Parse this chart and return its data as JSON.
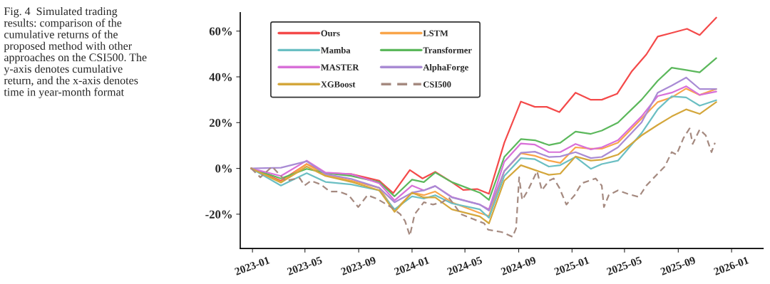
{
  "chart_data": {
    "type": "line",
    "title": "Fig. 4  Simulated trading\nresults: comparison of the\ncumulative returns of the\nproposed method with other\napproaches on the CSI500. The\ny-axis denotes cumulative\nreturn, and the x-axis denotes\ntime in year-month format",
    "x": [
      "2022-12-29",
      "2023-03-07",
      "2023-05-05",
      "2023-06-17",
      "2023-08-15",
      "2023-10-18",
      "2023-11-22",
      "2024-01-01",
      "2024-01-28",
      "2024-02-23",
      "2024-04-01",
      "2024-06-04",
      "2024-06-25",
      "2024-07-30",
      "2024-09-06",
      "2024-10-08",
      "2024-11-09",
      "2024-12-05",
      "2025-01-09",
      "2025-02-13",
      "2025-03-10",
      "2025-04-16",
      "2025-06-09",
      "2025-07-16",
      "2025-08-17",
      "2025-09-19",
      "2025-10-20",
      "2025-11-27"
    ],
    "series": [
      {
        "name": "Ours",
        "color": "#f44a4a",
        "x": [
          "2022-12-29",
          "2023-03-07",
          "2023-05-05",
          "2023-06-17",
          "2023-08-15",
          "2023-10-18",
          "2023-11-19",
          "2023-12-27",
          "2024-01-25",
          "2024-02-23",
          "2024-04-01",
          "2024-04-27",
          "2024-05-29",
          "2024-06-25",
          "2024-07-30",
          "2024-09-06",
          "2024-10-08",
          "2024-11-04",
          "2024-12-03",
          "2025-01-09",
          "2025-02-13",
          "2025-03-10",
          "2025-04-14",
          "2025-05-18",
          "2025-06-20",
          "2025-07-16",
          "2025-08-17",
          "2025-09-21",
          "2025-10-20",
          "2025-11-27"
        ],
        "values": [
          0,
          -5.4,
          1.9,
          -2,
          -2.5,
          -5.4,
          -10.8,
          -0.7,
          -4.4,
          -1.5,
          -6,
          -9.4,
          -9,
          -11.1,
          11.2,
          29.2,
          26.9,
          26.9,
          24.6,
          33.1,
          30,
          30,
          32.6,
          42.5,
          49.8,
          57.6,
          59.2,
          61,
          58.3,
          65.9
        ]
      },
      {
        "name": "LSTM",
        "color": "#f9a54a",
        "values": [
          0,
          -5.9,
          1.9,
          -2.8,
          -5.4,
          -8.5,
          -18.4,
          -10.6,
          -11.7,
          -10.1,
          -14.8,
          -19.5,
          -20.8,
          -1.2,
          6.6,
          5.5,
          3.4,
          2.4,
          9.2,
          8.6,
          8.6,
          11.2,
          21.7,
          29,
          31,
          34.9,
          32.1,
          34.7
        ]
      },
      {
        "name": "Mamba",
        "color": "#6bbfc3",
        "values": [
          0,
          -7.5,
          -2.1,
          -5.9,
          -7,
          -9.6,
          -17.9,
          -12.2,
          -13.2,
          -11.7,
          -15.3,
          -17.9,
          -21.6,
          -3.3,
          4.5,
          4,
          0.8,
          1.4,
          5,
          -0.2,
          1.9,
          3.4,
          15.4,
          25.8,
          31.5,
          31,
          27.4,
          29.8
        ]
      },
      {
        "name": "Transformer",
        "color": "#5cb85c",
        "values": [
          0,
          -4.4,
          -0.2,
          -2,
          -3.3,
          -6,
          -12.2,
          -4.9,
          -6,
          -1.8,
          -6,
          -10.6,
          -13.8,
          5,
          12.8,
          12.3,
          10.2,
          11.2,
          16.1,
          15.1,
          16.5,
          20,
          30,
          38.3,
          44,
          43,
          42,
          48.2
        ]
      },
      {
        "name": "MASTER",
        "color": "#d870d8",
        "values": [
          0,
          -3.3,
          3.4,
          -1.8,
          -2.5,
          -6.5,
          -14,
          -7.5,
          -9.6,
          -7.7,
          -12.5,
          -15.8,
          -17.9,
          2.9,
          10.9,
          10.4,
          7.1,
          7.1,
          10.7,
          8.3,
          9.2,
          12.3,
          22.7,
          31.6,
          33.1,
          35.9,
          32.1,
          33.6
        ]
      },
      {
        "name": "AlphaForge",
        "color": "#a98bd4",
        "values": [
          0,
          0.3,
          3.1,
          -2.5,
          -4.6,
          -8.5,
          -14.8,
          -10.6,
          -9.6,
          -7.7,
          -12.7,
          -15.8,
          -18.4,
          -1.2,
          6.8,
          7.3,
          5,
          5.2,
          7.1,
          4.5,
          5,
          9.2,
          20.1,
          33.1,
          36.2,
          39.7,
          34.7,
          34.7
        ]
      },
      {
        "name": "XGBoost",
        "color": "#d4a73c",
        "values": [
          0,
          -6.2,
          0.8,
          -3.3,
          -5.9,
          -9.6,
          -19,
          -10.6,
          -12.7,
          -12.7,
          -17.9,
          -21,
          -24,
          -5.4,
          1.4,
          -0.7,
          -2.8,
          -2.3,
          5.2,
          3.4,
          3.8,
          6,
          14.4,
          19,
          22.7,
          25.8,
          23.8,
          29
        ]
      },
      {
        "name": "CSI500",
        "color": "#a58a80",
        "line_style": "dashed",
        "x": [
          "2022-12-29",
          "2023-01-19",
          "2023-02-15",
          "2023-03-17",
          "2023-04-19",
          "2023-04-30",
          "2023-05-15",
          "2023-06-06",
          "2023-06-27",
          "2023-07-18",
          "2023-08-09",
          "2023-08-31",
          "2023-09-21",
          "2023-10-12",
          "2023-11-14",
          "2023-12-05",
          "2023-12-16",
          "2023-12-27",
          "2024-01-07",
          "2024-01-28",
          "2024-02-18",
          "2024-03-10",
          "2024-03-25",
          "2024-04-22",
          "2024-05-18",
          "2024-06-14",
          "2024-06-23",
          "2024-07-24",
          "2024-08-18",
          "2024-08-26",
          "2024-09-02",
          "2024-09-09",
          "2024-09-22",
          "2024-10-13",
          "2024-10-24",
          "2024-11-09",
          "2024-11-20",
          "2024-12-03",
          "2024-12-19",
          "2025-01-07",
          "2025-01-23",
          "2025-02-24",
          "2025-03-10",
          "2025-03-15",
          "2025-03-26",
          "2025-04-16",
          "2025-05-08",
          "2025-06-03",
          "2025-06-20",
          "2025-07-16",
          "2025-08-01",
          "2025-08-17",
          "2025-08-28",
          "2025-09-13",
          "2025-09-27",
          "2025-10-04",
          "2025-10-20",
          "2025-11-03",
          "2025-11-16",
          "2025-11-24"
        ],
        "values": [
          0,
          -3.9,
          0.8,
          -5.4,
          -4.2,
          -7.5,
          -5.4,
          -7,
          -10.1,
          -10.1,
          -11.7,
          -16.9,
          -11.7,
          -13.2,
          -16.9,
          -20,
          -23,
          -29.4,
          -20,
          -14.8,
          -15.8,
          -14.8,
          -12.7,
          -20,
          -22,
          -24,
          -26.8,
          -27.8,
          -29.9,
          -26.2,
          -3.9,
          -13.8,
          -9.6,
          -1.2,
          -9.6,
          -5.4,
          -4.4,
          -8.5,
          -15.8,
          -11.7,
          -6.5,
          -4.4,
          -7.5,
          -16.9,
          -11.7,
          -9.6,
          -11.1,
          -12.5,
          -7.5,
          -2.3,
          0.8,
          7.1,
          6,
          13.3,
          17.5,
          10.7,
          17,
          14.4,
          7.1,
          11.2
        ]
      }
    ],
    "xlim": [
      "2022-12-04",
      "2026-03-14"
    ],
    "xticks": [
      {
        "value": "2023-01-01",
        "label": "2023-01"
      },
      {
        "value": "2023-05-01",
        "label": "2023-05"
      },
      {
        "value": "2023-09-01",
        "label": "2023-09"
      },
      {
        "value": "2024-01-01",
        "label": "2024-01"
      },
      {
        "value": "2024-05-01",
        "label": "2024-05"
      },
      {
        "value": "2024-09-01",
        "label": "2024-09"
      },
      {
        "value": "2025-01-01",
        "label": "2025-01"
      },
      {
        "value": "2025-05-01",
        "label": "2025-05"
      },
      {
        "value": "2025-09-01",
        "label": "2025-09"
      },
      {
        "value": "2026-01-01",
        "label": "2026-01"
      }
    ],
    "ylim": [
      -35,
      68
    ],
    "yticks": [
      {
        "value": -20,
        "label": "-20%"
      },
      {
        "value": 0,
        "label": "0%"
      },
      {
        "value": 20,
        "label": "20%"
      },
      {
        "value": 40,
        "label": "40%"
      },
      {
        "value": 60,
        "label": "60%"
      }
    ],
    "grid": false,
    "legend": "top left",
    "line_style": "solid",
    "marker": "none"
  }
}
